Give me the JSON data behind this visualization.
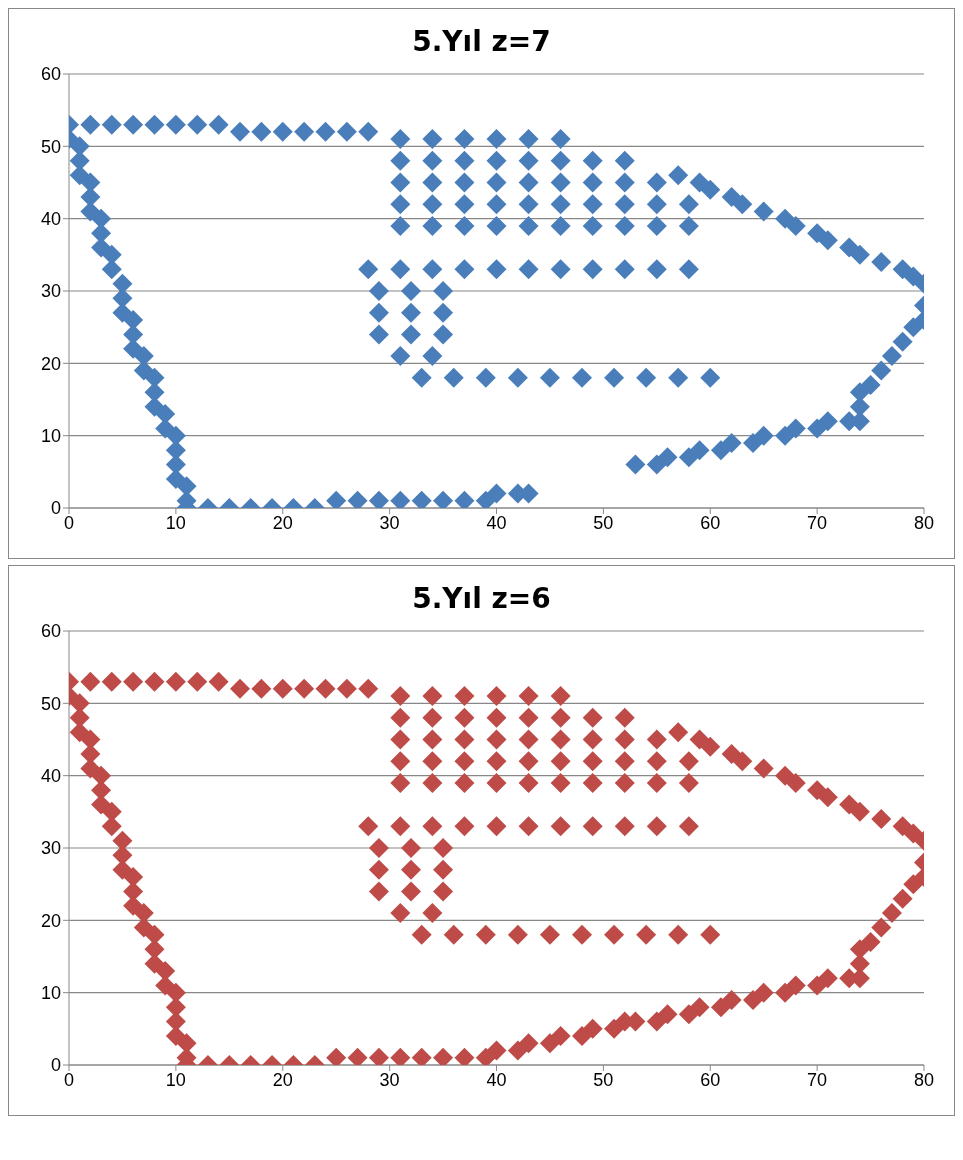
{
  "chart_data": [
    {
      "type": "scatter",
      "title": "5.Yıl z=7",
      "xlim": [
        0,
        80
      ],
      "xticks": [
        0,
        10,
        20,
        30,
        40,
        50,
        60,
        70,
        80
      ],
      "ylim": [
        0,
        60
      ],
      "yticks": [
        0,
        10,
        20,
        30,
        40,
        50,
        60
      ],
      "grid": "y",
      "marker": "diamond",
      "legend": false,
      "series": [
        {
          "color": "#4a7ebb",
          "x": [
            0,
            0,
            1,
            1,
            1,
            2,
            2,
            2,
            3,
            3,
            3,
            4,
            4,
            5,
            5,
            5,
            6,
            6,
            6,
            7,
            7,
            8,
            8,
            8,
            9,
            9,
            10,
            10,
            10,
            10,
            11,
            11,
            11,
            13,
            15,
            17,
            19,
            21,
            23,
            25,
            27,
            29,
            31,
            33,
            35,
            37,
            39,
            40,
            42,
            43,
            2,
            4,
            6,
            8,
            10,
            12,
            14,
            16,
            18,
            20,
            22,
            24,
            26,
            28,
            31,
            34,
            37,
            40,
            43,
            46,
            31,
            34,
            37,
            40,
            43,
            46,
            49,
            52,
            31,
            34,
            37,
            40,
            43,
            46,
            49,
            52,
            55,
            31,
            34,
            37,
            40,
            43,
            46,
            49,
            52,
            55,
            58,
            31,
            34,
            37,
            40,
            43,
            46,
            49,
            52,
            55,
            58,
            28,
            31,
            34,
            37,
            40,
            43,
            46,
            49,
            52,
            55,
            58,
            29,
            32,
            35,
            29,
            32,
            35,
            29,
            32,
            35,
            31,
            34,
            33,
            36,
            39,
            42,
            45,
            48,
            51,
            54,
            57,
            60,
            57,
            59,
            60,
            62,
            63,
            65,
            67,
            68,
            70,
            71,
            73,
            74,
            76,
            78,
            79,
            80,
            80,
            80,
            79,
            78,
            77,
            76,
            75,
            74,
            74,
            74,
            73,
            71,
            70,
            68,
            67,
            65,
            64,
            62,
            61,
            59,
            58,
            56,
            55,
            53
          ],
          "values": [
            53,
            51,
            50,
            48,
            46,
            45,
            43,
            41,
            40,
            38,
            36,
            35,
            33,
            31,
            29,
            27,
            26,
            24,
            22,
            21,
            19,
            18,
            16,
            14,
            13,
            11,
            10,
            8,
            6,
            4,
            3,
            1,
            0,
            0,
            0,
            0,
            0,
            0,
            0,
            1,
            1,
            1,
            1,
            1,
            1,
            1,
            1,
            2,
            2,
            2,
            53,
            53,
            53,
            53,
            53,
            53,
            53,
            52,
            52,
            52,
            52,
            52,
            52,
            52,
            51,
            51,
            51,
            51,
            51,
            51,
            48,
            48,
            48,
            48,
            48,
            48,
            48,
            48,
            45,
            45,
            45,
            45,
            45,
            45,
            45,
            45,
            45,
            42,
            42,
            42,
            42,
            42,
            42,
            42,
            42,
            42,
            42,
            39,
            39,
            39,
            39,
            39,
            39,
            39,
            39,
            39,
            39,
            33,
            33,
            33,
            33,
            33,
            33,
            33,
            33,
            33,
            33,
            33,
            30,
            30,
            30,
            27,
            27,
            27,
            24,
            24,
            24,
            21,
            21,
            18,
            18,
            18,
            18,
            18,
            18,
            18,
            18,
            18,
            18,
            46,
            45,
            44,
            43,
            42,
            41,
            40,
            39,
            38,
            37,
            36,
            35,
            34,
            33,
            32,
            31,
            28,
            26,
            25,
            23,
            21,
            19,
            17,
            16,
            14,
            12,
            12,
            12,
            11,
            11,
            10,
            10,
            9,
            9,
            8,
            8,
            7,
            7,
            6,
            6
          ]
        }
      ]
    },
    {
      "type": "scatter",
      "title": "5.Yıl z=6",
      "xlim": [
        0,
        80
      ],
      "xticks": [
        0,
        10,
        20,
        30,
        40,
        50,
        60,
        70,
        80
      ],
      "ylim": [
        0,
        60
      ],
      "yticks": [
        0,
        10,
        20,
        30,
        40,
        50,
        60
      ],
      "grid": "y",
      "marker": "diamond",
      "legend": false,
      "series": [
        {
          "color": "#be4b48",
          "x": [
            0,
            0,
            1,
            1,
            1,
            2,
            2,
            2,
            3,
            3,
            3,
            4,
            4,
            5,
            5,
            5,
            6,
            6,
            6,
            7,
            7,
            8,
            8,
            8,
            9,
            9,
            10,
            10,
            10,
            10,
            11,
            11,
            11,
            13,
            15,
            17,
            19,
            21,
            23,
            25,
            27,
            29,
            31,
            33,
            35,
            37,
            39,
            40,
            42,
            43,
            45,
            46,
            48,
            49,
            51,
            52,
            2,
            4,
            6,
            8,
            10,
            12,
            14,
            16,
            18,
            20,
            22,
            24,
            26,
            28,
            31,
            34,
            37,
            40,
            43,
            46,
            31,
            34,
            37,
            40,
            43,
            46,
            49,
            52,
            31,
            34,
            37,
            40,
            43,
            46,
            49,
            52,
            55,
            31,
            34,
            37,
            40,
            43,
            46,
            49,
            52,
            55,
            58,
            31,
            34,
            37,
            40,
            43,
            46,
            49,
            52,
            55,
            58,
            28,
            31,
            34,
            37,
            40,
            43,
            46,
            49,
            52,
            55,
            58,
            29,
            32,
            35,
            29,
            32,
            35,
            29,
            32,
            35,
            31,
            34,
            33,
            36,
            39,
            42,
            45,
            48,
            51,
            54,
            57,
            60,
            57,
            59,
            60,
            62,
            63,
            65,
            67,
            68,
            70,
            71,
            73,
            74,
            76,
            78,
            79,
            80,
            80,
            80,
            79,
            78,
            77,
            76,
            75,
            74,
            74,
            74,
            73,
            71,
            70,
            68,
            67,
            65,
            64,
            62,
            61,
            59,
            58,
            56,
            55,
            53
          ],
          "values": [
            53,
            51,
            50,
            48,
            46,
            45,
            43,
            41,
            40,
            38,
            36,
            35,
            33,
            31,
            29,
            27,
            26,
            24,
            22,
            21,
            19,
            18,
            16,
            14,
            13,
            11,
            10,
            8,
            6,
            4,
            3,
            1,
            0,
            0,
            0,
            0,
            0,
            0,
            0,
            1,
            1,
            1,
            1,
            1,
            1,
            1,
            1,
            2,
            2,
            3,
            3,
            4,
            4,
            5,
            5,
            6,
            53,
            53,
            53,
            53,
            53,
            53,
            53,
            52,
            52,
            52,
            52,
            52,
            52,
            52,
            51,
            51,
            51,
            51,
            51,
            51,
            48,
            48,
            48,
            48,
            48,
            48,
            48,
            48,
            45,
            45,
            45,
            45,
            45,
            45,
            45,
            45,
            45,
            42,
            42,
            42,
            42,
            42,
            42,
            42,
            42,
            42,
            42,
            39,
            39,
            39,
            39,
            39,
            39,
            39,
            39,
            39,
            39,
            33,
            33,
            33,
            33,
            33,
            33,
            33,
            33,
            33,
            33,
            33,
            30,
            30,
            30,
            27,
            27,
            27,
            24,
            24,
            24,
            21,
            21,
            18,
            18,
            18,
            18,
            18,
            18,
            18,
            18,
            18,
            18,
            46,
            45,
            44,
            43,
            42,
            41,
            40,
            39,
            38,
            37,
            36,
            35,
            34,
            33,
            32,
            31,
            28,
            26,
            25,
            23,
            21,
            19,
            17,
            16,
            14,
            12,
            12,
            12,
            11,
            11,
            10,
            10,
            9,
            9,
            8,
            8,
            7,
            7,
            6,
            6
          ]
        }
      ]
    }
  ]
}
